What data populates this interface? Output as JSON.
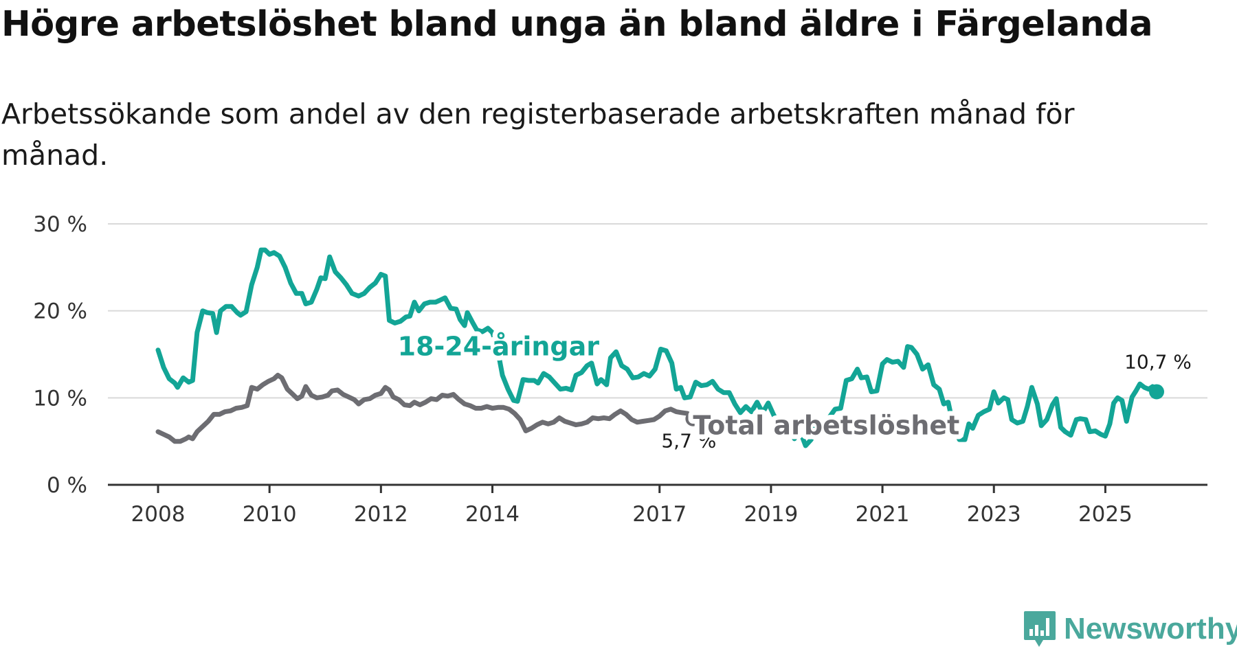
{
  "title": "Högre arbetslöshet bland unga än bland äldre i Färgelanda",
  "subtitle": "Arbetssökande som andel av den registerbaserade arbetskraften månad för månad.",
  "brand": "Newsworthy",
  "chart_data": {
    "type": "line",
    "title": "Högre arbetslöshet bland unga än bland äldre i Färgelanda",
    "subtitle": "Arbetssökande som andel av den registerbaserade arbetskraften månad för månad.",
    "xlabel": "",
    "ylabel": "",
    "ylim": [
      0,
      30
    ],
    "yticks": [
      0,
      10,
      20,
      30
    ],
    "ytick_labels": [
      "0 %",
      "10 %",
      "20 %",
      "30 %"
    ],
    "xticks": [
      2008,
      2010,
      2012,
      2014,
      2017,
      2019,
      2021,
      2023,
      2025
    ],
    "xtick_labels": [
      "2008",
      "2010",
      "2012",
      "2014",
      "2017",
      "2019",
      "2021",
      "2023",
      "2025"
    ],
    "x_range": [
      2008.0,
      2025.92
    ],
    "grid": true,
    "series": [
      {
        "name": "18-24-åringar",
        "label": "18-24-åringar",
        "color": "#13a596",
        "end_label": "10,7 %",
        "points": [
          [
            2008.0,
            15.5
          ],
          [
            2008.1,
            13.5
          ],
          [
            2008.2,
            12.2
          ],
          [
            2008.3,
            11.7
          ],
          [
            2008.35,
            11.2
          ],
          [
            2008.45,
            12.3
          ],
          [
            2008.55,
            11.8
          ],
          [
            2008.62,
            12.0
          ],
          [
            2008.7,
            17.5
          ],
          [
            2008.8,
            20.0
          ],
          [
            2008.88,
            19.8
          ],
          [
            2008.98,
            19.7
          ],
          [
            2009.05,
            17.5
          ],
          [
            2009.12,
            20.0
          ],
          [
            2009.22,
            20.5
          ],
          [
            2009.32,
            20.5
          ],
          [
            2009.42,
            19.8
          ],
          [
            2009.48,
            19.5
          ],
          [
            2009.58,
            19.9
          ],
          [
            2009.68,
            23.0
          ],
          [
            2009.78,
            25.0
          ],
          [
            2009.85,
            27.0
          ],
          [
            2009.92,
            27.0
          ],
          [
            2010.0,
            26.5
          ],
          [
            2010.08,
            26.7
          ],
          [
            2010.18,
            26.3
          ],
          [
            2010.28,
            25.0
          ],
          [
            2010.38,
            23.2
          ],
          [
            2010.48,
            22.0
          ],
          [
            2010.58,
            22.0
          ],
          [
            2010.65,
            20.8
          ],
          [
            2010.75,
            21.0
          ],
          [
            2010.85,
            22.5
          ],
          [
            2010.92,
            23.8
          ],
          [
            2011.0,
            23.7
          ],
          [
            2011.08,
            26.2
          ],
          [
            2011.18,
            24.5
          ],
          [
            2011.28,
            23.8
          ],
          [
            2011.38,
            23.0
          ],
          [
            2011.48,
            22.0
          ],
          [
            2011.6,
            21.7
          ],
          [
            2011.7,
            22.0
          ],
          [
            2011.8,
            22.7
          ],
          [
            2011.9,
            23.2
          ],
          [
            2012.0,
            24.2
          ],
          [
            2012.08,
            24.0
          ],
          [
            2012.15,
            18.9
          ],
          [
            2012.25,
            18.6
          ],
          [
            2012.35,
            18.8
          ],
          [
            2012.45,
            19.3
          ],
          [
            2012.52,
            19.4
          ],
          [
            2012.6,
            21.0
          ],
          [
            2012.68,
            20.0
          ],
          [
            2012.78,
            20.8
          ],
          [
            2012.88,
            21.0
          ],
          [
            2012.98,
            21.0
          ],
          [
            2013.05,
            21.2
          ],
          [
            2013.15,
            21.5
          ],
          [
            2013.25,
            20.3
          ],
          [
            2013.35,
            20.2
          ],
          [
            2013.42,
            19.0
          ],
          [
            2013.5,
            18.3
          ],
          [
            2013.55,
            19.8
          ],
          [
            2013.65,
            18.6
          ],
          [
            2013.72,
            17.8
          ],
          [
            2013.82,
            17.6
          ],
          [
            2013.92,
            18.0
          ],
          [
            2014.0,
            17.5
          ],
          [
            2014.08,
            16.0
          ],
          [
            2014.18,
            12.6
          ],
          [
            2014.28,
            11.0
          ],
          [
            2014.38,
            9.7
          ],
          [
            2014.45,
            9.6
          ],
          [
            2014.55,
            12.1
          ],
          [
            2014.65,
            12.0
          ],
          [
            2014.75,
            12.0
          ],
          [
            2014.82,
            11.7
          ],
          [
            2014.92,
            12.8
          ],
          [
            2015.02,
            12.4
          ],
          [
            2015.12,
            11.7
          ],
          [
            2015.22,
            11.0
          ],
          [
            2015.32,
            11.1
          ],
          [
            2015.42,
            10.9
          ],
          [
            2015.5,
            12.6
          ],
          [
            2015.6,
            12.9
          ],
          [
            2015.7,
            13.7
          ],
          [
            2015.78,
            14.0
          ],
          [
            2015.88,
            11.6
          ],
          [
            2015.95,
            12.1
          ],
          [
            2016.05,
            11.5
          ],
          [
            2016.12,
            14.6
          ],
          [
            2016.22,
            15.3
          ],
          [
            2016.32,
            13.7
          ],
          [
            2016.42,
            13.3
          ],
          [
            2016.52,
            12.3
          ],
          [
            2016.62,
            12.4
          ],
          [
            2016.72,
            12.8
          ],
          [
            2016.82,
            12.5
          ],
          [
            2016.92,
            13.3
          ],
          [
            2017.02,
            15.6
          ],
          [
            2017.12,
            15.4
          ],
          [
            2017.22,
            14.0
          ],
          [
            2017.3,
            11.0
          ],
          [
            2017.38,
            11.2
          ],
          [
            2017.45,
            10.0
          ],
          [
            2017.55,
            10.1
          ],
          [
            2017.65,
            11.8
          ],
          [
            2017.75,
            11.4
          ],
          [
            2017.85,
            11.5
          ],
          [
            2017.95,
            11.9
          ],
          [
            2018.05,
            11.0
          ],
          [
            2018.15,
            10.6
          ],
          [
            2018.25,
            10.6
          ],
          [
            2018.35,
            9.3
          ],
          [
            2018.45,
            8.3
          ],
          [
            2018.55,
            9.0
          ],
          [
            2018.65,
            8.4
          ],
          [
            2018.75,
            9.5
          ],
          [
            2018.85,
            8.3
          ],
          [
            2018.95,
            9.4
          ],
          [
            2019.05,
            8.0
          ],
          [
            2019.15,
            7.0
          ],
          [
            2019.25,
            5.8
          ],
          [
            2019.35,
            6.2
          ],
          [
            2019.42,
            5.3
          ],
          [
            2019.52,
            6.2
          ],
          [
            2019.62,
            4.5
          ],
          [
            2019.72,
            5.2
          ],
          [
            2019.82,
            7.0
          ],
          [
            2019.92,
            7.2
          ],
          [
            2020.05,
            7.8
          ],
          [
            2020.15,
            8.7
          ],
          [
            2020.25,
            8.8
          ],
          [
            2020.35,
            12.0
          ],
          [
            2020.45,
            12.2
          ],
          [
            2020.55,
            13.3
          ],
          [
            2020.62,
            12.3
          ],
          [
            2020.72,
            12.4
          ],
          [
            2020.8,
            10.7
          ],
          [
            2020.9,
            10.8
          ],
          [
            2021.0,
            13.9
          ],
          [
            2021.08,
            14.4
          ],
          [
            2021.18,
            14.1
          ],
          [
            2021.28,
            14.2
          ],
          [
            2021.38,
            13.5
          ],
          [
            2021.45,
            15.9
          ],
          [
            2021.52,
            15.8
          ],
          [
            2021.62,
            15.0
          ],
          [
            2021.72,
            13.3
          ],
          [
            2021.82,
            13.8
          ],
          [
            2021.92,
            11.5
          ],
          [
            2022.02,
            11.0
          ],
          [
            2022.1,
            9.3
          ],
          [
            2022.18,
            9.5
          ],
          [
            2022.28,
            6.5
          ],
          [
            2022.38,
            5.2
          ],
          [
            2022.48,
            5.2
          ],
          [
            2022.55,
            7.0
          ],
          [
            2022.62,
            6.5
          ],
          [
            2022.72,
            8.0
          ],
          [
            2022.82,
            8.4
          ],
          [
            2022.92,
            8.7
          ],
          [
            2023.0,
            10.7
          ],
          [
            2023.08,
            9.4
          ],
          [
            2023.18,
            10.0
          ],
          [
            2023.25,
            9.8
          ],
          [
            2023.32,
            7.5
          ],
          [
            2023.42,
            7.1
          ],
          [
            2023.52,
            7.3
          ],
          [
            2023.6,
            9.0
          ],
          [
            2023.68,
            11.2
          ],
          [
            2023.78,
            9.3
          ],
          [
            2023.85,
            6.8
          ],
          [
            2023.95,
            7.5
          ],
          [
            2024.05,
            9.2
          ],
          [
            2024.12,
            9.9
          ],
          [
            2024.2,
            6.6
          ],
          [
            2024.28,
            6.1
          ],
          [
            2024.38,
            5.7
          ],
          [
            2024.48,
            7.5
          ],
          [
            2024.55,
            7.6
          ],
          [
            2024.65,
            7.5
          ],
          [
            2024.72,
            6.1
          ],
          [
            2024.82,
            6.2
          ],
          [
            2024.92,
            5.8
          ],
          [
            2025.0,
            5.6
          ],
          [
            2025.08,
            7.0
          ],
          [
            2025.15,
            9.4
          ],
          [
            2025.22,
            10.0
          ],
          [
            2025.3,
            9.7
          ],
          [
            2025.38,
            7.3
          ],
          [
            2025.48,
            10.1
          ],
          [
            2025.55,
            10.8
          ],
          [
            2025.62,
            11.6
          ],
          [
            2025.7,
            11.2
          ],
          [
            2025.78,
            11.0
          ],
          [
            2025.85,
            11.3
          ],
          [
            2025.92,
            10.7
          ]
        ]
      },
      {
        "name": "Total arbetslöshet",
        "label": "Total arbetslöshet",
        "color": "#6d6d72",
        "end_label": "5,7 %",
        "points": [
          [
            2008.0,
            6.1
          ],
          [
            2008.1,
            5.8
          ],
          [
            2008.2,
            5.5
          ],
          [
            2008.3,
            5.0
          ],
          [
            2008.4,
            5.0
          ],
          [
            2008.5,
            5.3
          ],
          [
            2008.55,
            5.5
          ],
          [
            2008.62,
            5.3
          ],
          [
            2008.7,
            6.1
          ],
          [
            2008.8,
            6.7
          ],
          [
            2008.9,
            7.3
          ],
          [
            2009.0,
            8.1
          ],
          [
            2009.1,
            8.1
          ],
          [
            2009.2,
            8.4
          ],
          [
            2009.3,
            8.5
          ],
          [
            2009.4,
            8.8
          ],
          [
            2009.5,
            8.9
          ],
          [
            2009.6,
            9.1
          ],
          [
            2009.68,
            11.2
          ],
          [
            2009.78,
            11.0
          ],
          [
            2009.88,
            11.5
          ],
          [
            2009.98,
            11.9
          ],
          [
            2010.08,
            12.2
          ],
          [
            2010.15,
            12.6
          ],
          [
            2010.22,
            12.3
          ],
          [
            2010.32,
            11.0
          ],
          [
            2010.42,
            10.4
          ],
          [
            2010.5,
            9.9
          ],
          [
            2010.58,
            10.2
          ],
          [
            2010.65,
            11.3
          ],
          [
            2010.75,
            10.3
          ],
          [
            2010.85,
            10.0
          ],
          [
            2010.95,
            10.1
          ],
          [
            2011.05,
            10.3
          ],
          [
            2011.12,
            10.8
          ],
          [
            2011.22,
            10.9
          ],
          [
            2011.32,
            10.4
          ],
          [
            2011.42,
            10.1
          ],
          [
            2011.52,
            9.8
          ],
          [
            2011.6,
            9.3
          ],
          [
            2011.7,
            9.8
          ],
          [
            2011.8,
            9.9
          ],
          [
            2011.9,
            10.3
          ],
          [
            2012.0,
            10.5
          ],
          [
            2012.08,
            11.2
          ],
          [
            2012.15,
            10.9
          ],
          [
            2012.22,
            10.1
          ],
          [
            2012.32,
            9.8
          ],
          [
            2012.42,
            9.2
          ],
          [
            2012.52,
            9.1
          ],
          [
            2012.6,
            9.5
          ],
          [
            2012.7,
            9.2
          ],
          [
            2012.8,
            9.5
          ],
          [
            2012.9,
            9.9
          ],
          [
            2013.0,
            9.8
          ],
          [
            2013.1,
            10.3
          ],
          [
            2013.2,
            10.2
          ],
          [
            2013.3,
            10.4
          ],
          [
            2013.4,
            9.8
          ],
          [
            2013.5,
            9.3
          ],
          [
            2013.6,
            9.1
          ],
          [
            2013.7,
            8.8
          ],
          [
            2013.8,
            8.8
          ],
          [
            2013.9,
            9.0
          ],
          [
            2014.0,
            8.8
          ],
          [
            2014.1,
            8.9
          ],
          [
            2014.2,
            8.9
          ],
          [
            2014.3,
            8.7
          ],
          [
            2014.4,
            8.2
          ],
          [
            2014.5,
            7.5
          ],
          [
            2014.6,
            6.2
          ],
          [
            2014.7,
            6.5
          ],
          [
            2014.8,
            6.9
          ],
          [
            2014.9,
            7.2
          ],
          [
            2015.0,
            7.0
          ],
          [
            2015.1,
            7.2
          ],
          [
            2015.2,
            7.7
          ],
          [
            2015.3,
            7.3
          ],
          [
            2015.4,
            7.1
          ],
          [
            2015.5,
            6.9
          ],
          [
            2015.6,
            7.0
          ],
          [
            2015.7,
            7.2
          ],
          [
            2015.8,
            7.7
          ],
          [
            2015.9,
            7.6
          ],
          [
            2016.0,
            7.7
          ],
          [
            2016.1,
            7.6
          ],
          [
            2016.2,
            8.1
          ],
          [
            2016.3,
            8.5
          ],
          [
            2016.4,
            8.1
          ],
          [
            2016.5,
            7.5
          ],
          [
            2016.6,
            7.2
          ],
          [
            2016.7,
            7.3
          ],
          [
            2016.8,
            7.4
          ],
          [
            2016.9,
            7.5
          ],
          [
            2017.0,
            7.9
          ],
          [
            2017.1,
            8.5
          ],
          [
            2017.2,
            8.7
          ],
          [
            2017.3,
            8.4
          ],
          [
            2017.4,
            8.3
          ],
          [
            2017.5,
            8.2
          ],
          [
            2017.6,
            7.6
          ]
        ]
      }
    ]
  }
}
